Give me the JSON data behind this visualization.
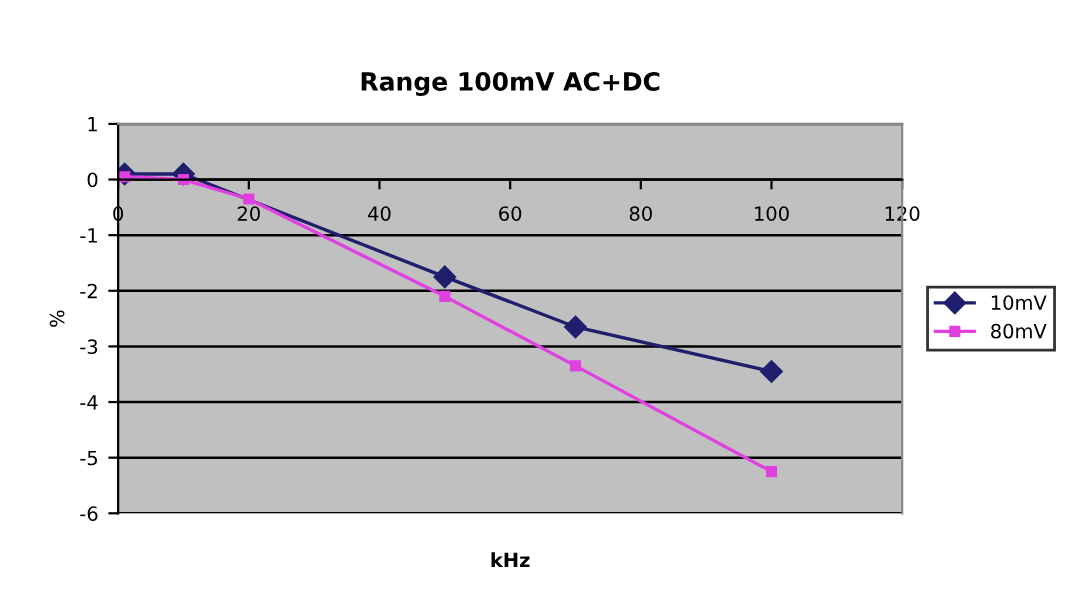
{
  "chart_data": {
    "type": "line",
    "title": "Range 100mV AC+DC",
    "xlabel": "kHz",
    "ylabel": "%",
    "xlim": [
      0,
      120
    ],
    "xticks": [
      0,
      20,
      40,
      60,
      80,
      100,
      120
    ],
    "ylim": [
      -6,
      1
    ],
    "yticks": [
      -6,
      -5,
      -4,
      -3,
      -2,
      -1,
      0,
      1
    ],
    "grid": "y",
    "legend": "right",
    "series": [
      {
        "name": "10mV",
        "color": "#1f1f6e",
        "marker": "diamond",
        "x": [
          1,
          10,
          50,
          70,
          100
        ],
        "values": [
          0.1,
          0.1,
          -1.75,
          -2.65,
          -3.45
        ]
      },
      {
        "name": "80mV",
        "color": "#e040e0",
        "marker": "square",
        "x": [
          1,
          10,
          20,
          50,
          70,
          100
        ],
        "values": [
          0.05,
          0,
          -0.35,
          -2.1,
          -3.35,
          -5.25
        ]
      }
    ]
  }
}
